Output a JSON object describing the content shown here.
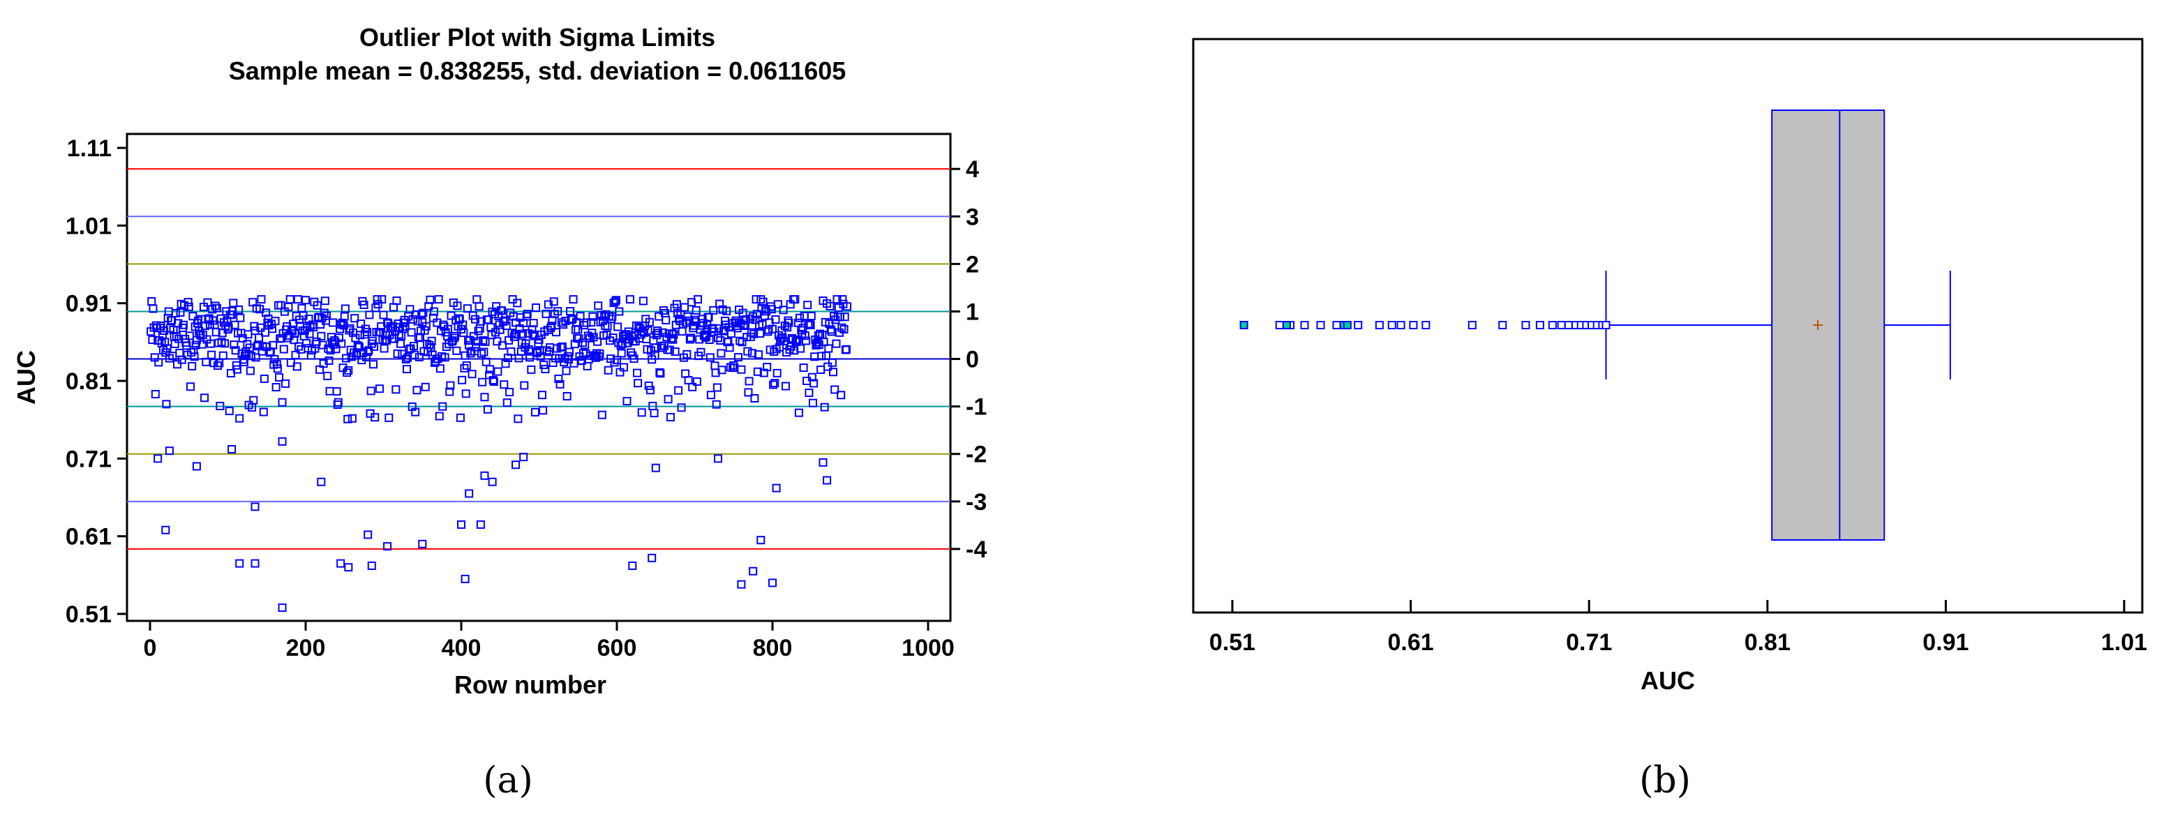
{
  "colors": {
    "points": "#0000ff",
    "sigma4": "#ff0000",
    "sigma3": "#6666ff",
    "sigma2": "#999900",
    "sigma1": "#009999",
    "mean": "#0000cc",
    "box_fill": "#c0c0c0",
    "box_stroke": "#0000ff",
    "mean_marker": "#b35900",
    "far_outlier_fill": "#00cc99"
  },
  "panels": {
    "a_label": "(a)",
    "b_label": "(b)"
  },
  "chart_data": [
    {
      "type": "scatter",
      "title": "Outlier Plot with Sigma Limits",
      "subtitle": "Sample mean = 0.838255, std. deviation = 0.0611605",
      "xlabel": "Row number",
      "ylabel": "AUC",
      "xlim": [
        0,
        1000
      ],
      "ylim": [
        0.51,
        1.11
      ],
      "x_ticks": [
        "0",
        "200",
        "400",
        "600",
        "800",
        "1000"
      ],
      "y_ticks": [
        "0.51",
        "0.61",
        "0.71",
        "0.81",
        "0.91",
        "1.01",
        "1.11"
      ],
      "sigma_ticks": [
        "4",
        "3",
        "2",
        "1",
        "0",
        "-1",
        "-2",
        "-3",
        "-4"
      ],
      "mean": 0.838255,
      "std": 0.0611605,
      "n_rows": 896,
      "grid": false,
      "points_low": [
        {
          "x": 10,
          "y": 0.71
        },
        {
          "x": 25,
          "y": 0.72
        },
        {
          "x": 60,
          "y": 0.7
        },
        {
          "x": 20,
          "y": 0.618
        },
        {
          "x": 105,
          "y": 0.722
        },
        {
          "x": 115,
          "y": 0.575
        },
        {
          "x": 135,
          "y": 0.575
        },
        {
          "x": 135,
          "y": 0.648
        },
        {
          "x": 170,
          "y": 0.518
        },
        {
          "x": 170,
          "y": 0.732
        },
        {
          "x": 220,
          "y": 0.68
        },
        {
          "x": 245,
          "y": 0.575
        },
        {
          "x": 255,
          "y": 0.57
        },
        {
          "x": 280,
          "y": 0.612
        },
        {
          "x": 285,
          "y": 0.572
        },
        {
          "x": 305,
          "y": 0.597
        },
        {
          "x": 350,
          "y": 0.6
        },
        {
          "x": 400,
          "y": 0.625
        },
        {
          "x": 405,
          "y": 0.555
        },
        {
          "x": 410,
          "y": 0.665
        },
        {
          "x": 425,
          "y": 0.625
        },
        {
          "x": 430,
          "y": 0.688
        },
        {
          "x": 440,
          "y": 0.68
        },
        {
          "x": 470,
          "y": 0.702
        },
        {
          "x": 480,
          "y": 0.712
        },
        {
          "x": 620,
          "y": 0.572
        },
        {
          "x": 645,
          "y": 0.582
        },
        {
          "x": 650,
          "y": 0.698
        },
        {
          "x": 730,
          "y": 0.71
        },
        {
          "x": 760,
          "y": 0.548
        },
        {
          "x": 775,
          "y": 0.565
        },
        {
          "x": 785,
          "y": 0.605
        },
        {
          "x": 800,
          "y": 0.55
        },
        {
          "x": 805,
          "y": 0.672
        },
        {
          "x": 870,
          "y": 0.682
        },
        {
          "x": 865,
          "y": 0.705
        }
      ]
    },
    {
      "type": "box",
      "xlabel": "AUC",
      "xlim": [
        0.51,
        1.01
      ],
      "x_ticks": [
        "0.51",
        "0.61",
        "0.71",
        "0.81",
        "0.91",
        "1.01"
      ],
      "q1": 0.8125,
      "median": 0.8505,
      "q3": 0.8755,
      "mean": 0.838255,
      "whisker_low": 0.7195,
      "whisker_high": 0.9125,
      "outliers": [
        0.6185,
        0.6115,
        0.6045,
        0.5995,
        0.5925,
        0.5805,
        0.5685,
        0.5595,
        0.5505,
        0.5425,
        0.5365,
        0.6445,
        0.6615,
        0.6745,
        0.6825,
        0.6895,
        0.6945,
        0.6985,
        0.7025,
        0.7055,
        0.7085,
        0.7115,
        0.7145,
        0.7175,
        0.7195
      ],
      "far_outliers": [
        0.5165,
        0.5405,
        0.5725,
        0.5745
      ]
    }
  ]
}
